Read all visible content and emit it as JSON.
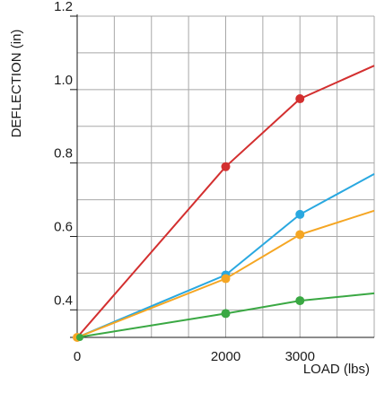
{
  "chart_data": {
    "type": "line",
    "title": "",
    "xlabel": "LOAD (lbs)",
    "ylabel": "DEFLECTION (in)",
    "xlim": [
      0,
      4000
    ],
    "ylim": [
      0.325,
      1.2
    ],
    "x_ticks": [
      0,
      2000,
      3000
    ],
    "x_tick_labels": [
      "0",
      "2000",
      "3000"
    ],
    "y_ticks": [
      0.4,
      0.6,
      0.8,
      1.0,
      1.2
    ],
    "y_tick_labels": [
      "0.4",
      "0.6",
      "0.8",
      "1.0",
      "1.2"
    ],
    "grid": true,
    "legend": "none",
    "series": [
      {
        "color": "#d32f2f",
        "x": [
          0,
          2000,
          3000,
          4000
        ],
        "y": [
          0.325,
          0.79,
          0.975,
          1.065
        ]
      },
      {
        "color": "#29a8e0",
        "x": [
          0,
          2000,
          3000,
          4000
        ],
        "y": [
          0.325,
          0.495,
          0.66,
          0.77
        ]
      },
      {
        "color": "#f5a623",
        "x": [
          0,
          2000,
          3000,
          4000
        ],
        "y": [
          0.325,
          0.485,
          0.605,
          0.67
        ]
      },
      {
        "color": "#3aa843",
        "x": [
          0,
          2000,
          3000,
          4000
        ],
        "y": [
          0.325,
          0.39,
          0.425,
          0.445
        ]
      }
    ]
  }
}
